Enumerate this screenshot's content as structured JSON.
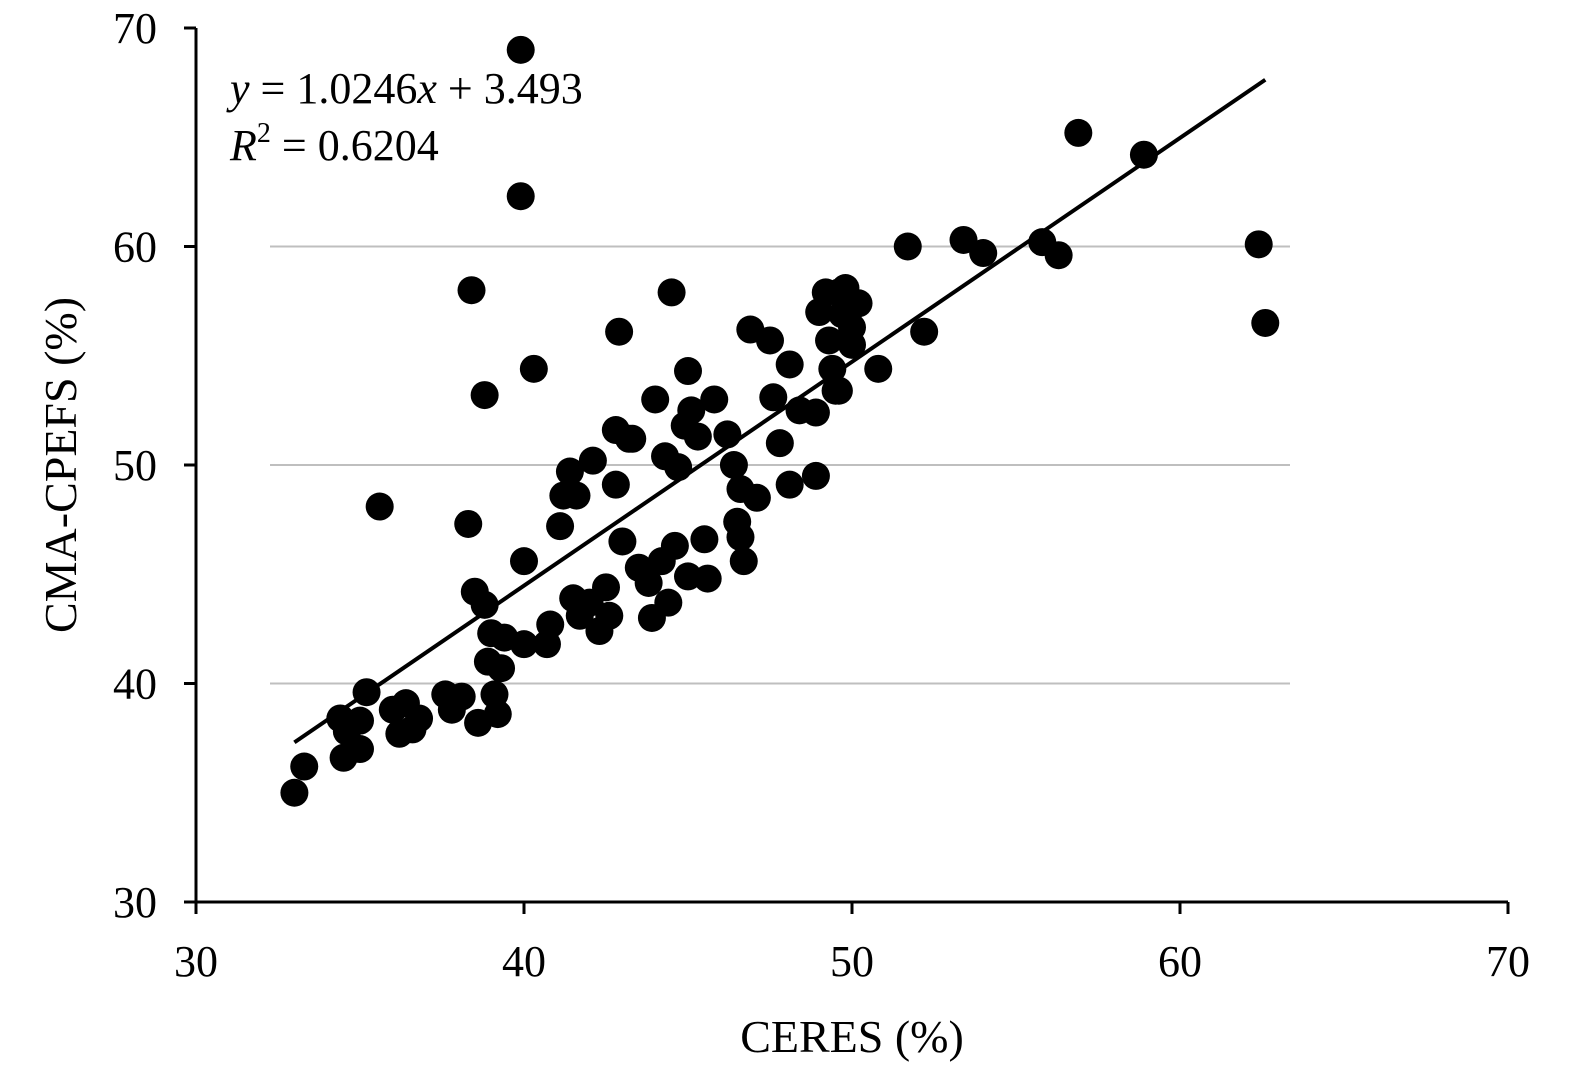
{
  "chart_data": {
    "type": "scatter",
    "xlabel": "CERES (%)",
    "ylabel": "CMA-CPEFS (%)",
    "xlim": [
      30,
      70
    ],
    "ylim": [
      30,
      70
    ],
    "x_ticks": [
      30,
      40,
      50,
      60,
      70
    ],
    "y_ticks": [
      30,
      40,
      50,
      60,
      70
    ],
    "gridlines_y": [
      40,
      50,
      60
    ],
    "grid": "horizontal major only",
    "point_color": "#000000",
    "trendline": {
      "slope": 1.0246,
      "intercept": 3.493,
      "x_range": [
        33,
        62.6
      ]
    },
    "equation": {
      "y_var": "y",
      "equals_text": " = 1.0246",
      "x_var": "x",
      "tail_text": " + 3.493"
    },
    "r_squared": {
      "var": "R",
      "sup": "2",
      "value_text": " = 0.6204"
    },
    "series": [
      {
        "x": [
          33.0,
          33.3,
          34.4,
          34.5,
          34.6,
          35.0,
          35.0,
          35.2,
          35.6,
          36.0,
          36.2,
          36.4,
          36.6,
          36.8,
          37.6,
          37.8,
          38.1,
          38.3,
          38.4,
          38.5,
          38.6,
          38.8,
          38.8,
          38.9,
          39.0,
          39.1,
          39.2,
          39.3,
          39.4,
          39.9,
          39.9,
          40.0,
          40.0,
          40.3,
          40.7,
          40.8,
          41.1,
          41.2,
          41.4,
          41.5,
          41.6,
          41.7,
          42.0,
          42.1,
          42.3,
          42.5,
          42.6,
          42.8,
          42.8,
          42.9,
          43.0,
          43.2,
          43.3,
          43.5,
          43.8,
          43.9,
          44.0,
          44.2,
          44.3,
          44.4,
          44.5,
          44.6,
          44.7,
          44.9,
          45.0,
          45.0,
          45.1,
          45.3,
          45.5,
          45.6,
          45.8,
          46.2,
          46.4,
          46.5,
          46.6,
          46.6,
          46.7,
          46.9,
          47.1,
          47.5,
          47.6,
          47.8,
          48.1,
          48.1,
          48.4,
          48.9,
          48.9,
          49.0,
          49.2,
          49.3,
          49.4,
          49.5,
          49.6,
          49.6,
          49.7,
          49.8,
          50.0,
          50.0,
          50.2,
          50.8,
          51.7,
          52.2,
          53.4,
          54.0,
          55.8,
          56.3,
          56.9,
          58.9,
          62.4,
          62.6
        ],
        "y": [
          35.0,
          36.2,
          38.4,
          36.6,
          37.8,
          38.3,
          37.0,
          39.6,
          48.1,
          38.8,
          37.7,
          39.1,
          37.9,
          38.4,
          39.5,
          38.8,
          39.4,
          47.3,
          58.0,
          44.2,
          38.2,
          53.2,
          43.6,
          41.0,
          42.3,
          39.5,
          38.6,
          40.7,
          42.1,
          69.0,
          62.3,
          45.6,
          41.8,
          54.4,
          41.8,
          42.7,
          47.2,
          48.6,
          49.7,
          43.9,
          48.6,
          43.1,
          43.7,
          50.2,
          42.4,
          44.4,
          43.1,
          49.1,
          51.6,
          56.1,
          46.5,
          51.2,
          51.2,
          45.3,
          44.6,
          43.0,
          53.0,
          45.6,
          50.4,
          43.7,
          57.9,
          46.3,
          49.9,
          51.8,
          54.3,
          44.9,
          52.5,
          51.3,
          46.6,
          44.8,
          53.0,
          51.4,
          50.0,
          47.4,
          48.9,
          46.7,
          45.6,
          56.2,
          48.5,
          55.7,
          53.1,
          51.0,
          54.6,
          49.1,
          52.5,
          52.4,
          49.5,
          57.0,
          57.9,
          55.7,
          54.4,
          53.4,
          57.9,
          53.4,
          56.9,
          58.1,
          55.5,
          56.3,
          57.4,
          54.4,
          60.0,
          56.1,
          60.3,
          59.7,
          60.2,
          59.6,
          65.2,
          64.2,
          60.1,
          56.5
        ]
      }
    ]
  }
}
